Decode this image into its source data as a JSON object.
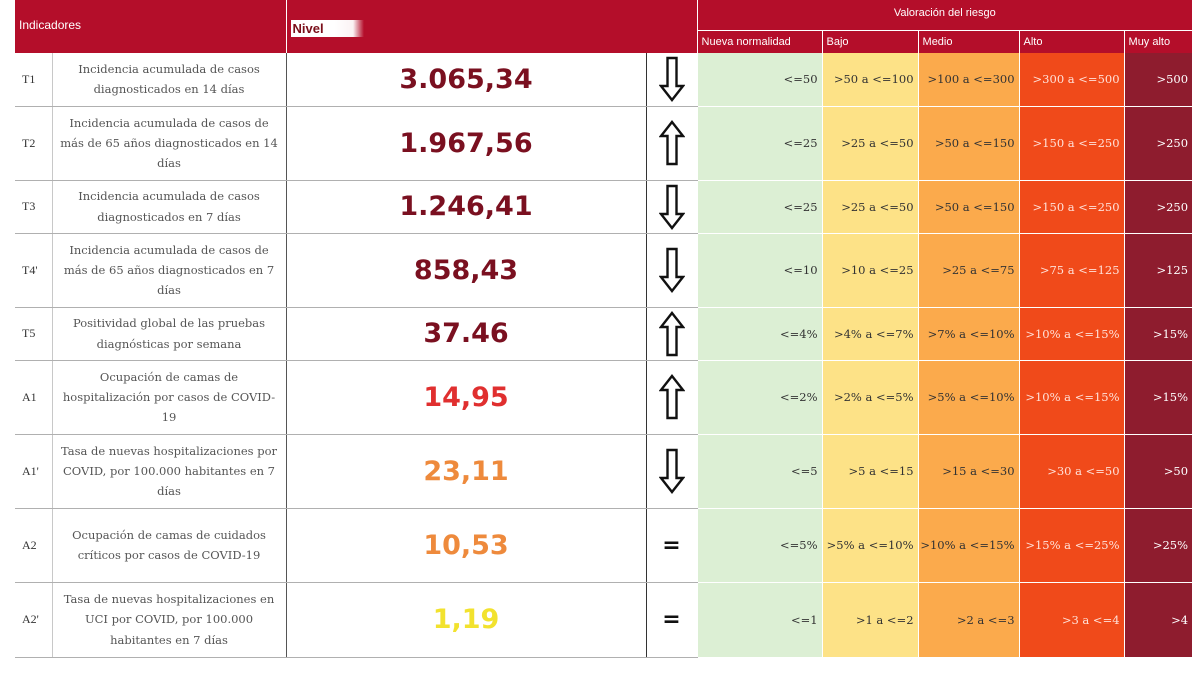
{
  "headers": {
    "indicadores": "Indicadores",
    "nivel": "Nivel",
    "valoracion": "Valoración del riesgo",
    "categories": [
      "Nueva normalidad",
      "Bajo",
      "Medio",
      "Alto",
      "Muy alto"
    ]
  },
  "colors": {
    "header_bg": "#b40e2a",
    "nueva_normalidad": "#dcefd4",
    "bajo": "#fde287",
    "medio": "#fbaa4c",
    "alto": "#f04a1a",
    "muy_alto": "#8e1c2e"
  },
  "rows": [
    {
      "code": "T1",
      "description": "Incidencia acumulada de casos diagnosticados en 14 días",
      "value": "3.065,34",
      "value_color": "#7a1020",
      "trend": "down",
      "thresholds": [
        "<=50",
        ">50 a <=100",
        ">100 a <=300",
        ">300 a <=500",
        ">500"
      ]
    },
    {
      "code": "T2",
      "description": "Incidencia acumulada de casos de más de 65 años diagnosticados en 14 días",
      "value": "1.967,56",
      "value_color": "#7a1020",
      "trend": "up",
      "thresholds": [
        "<=25",
        ">25 a <=50",
        ">50 a <=150",
        ">150 a <=250",
        ">250"
      ]
    },
    {
      "code": "T3",
      "description": "Incidencia acumulada de casos diagnosticados en 7 días",
      "value": "1.246,41",
      "value_color": "#7a1020",
      "trend": "down",
      "thresholds": [
        "<=25",
        ">25 a <=50",
        ">50 a <=150",
        ">150 a <=250",
        ">250"
      ]
    },
    {
      "code": "T4'",
      "description": "Incidencia acumulada de casos de más de 65 años diagnosticados en 7 días",
      "value": "858,43",
      "value_color": "#7a1020",
      "trend": "down",
      "thresholds": [
        "<=10",
        ">10 a <=25",
        ">25 a <=75",
        ">75 a <=125",
        ">125"
      ]
    },
    {
      "code": "T5",
      "description": "Positividad global de las pruebas diagnósticas por semana",
      "value": "37.46",
      "value_color": "#7a1020",
      "trend": "up",
      "thresholds": [
        "<=4%",
        ">4% a <=7%",
        ">7% a <=10%",
        ">10% a <=15%",
        ">15%"
      ]
    },
    {
      "code": "A1",
      "description": "Ocupación de camas de hospitalización por casos de COVID-19",
      "value": "14,95",
      "value_color": "#e02f2f",
      "trend": "up",
      "thresholds": [
        "<=2%",
        ">2% a <=5%",
        ">5% a <=10%",
        ">10% a <=15%",
        ">15%"
      ]
    },
    {
      "code": "A1'",
      "description": "Tasa de nuevas hospitalizaciones por COVID, por 100.000 habitantes en 7 días",
      "value": "23,11",
      "value_color": "#ee8a3c",
      "trend": "down",
      "thresholds": [
        "<=5",
        ">5 a <=15",
        ">15 a <=30",
        ">30 a <=50",
        ">50"
      ]
    },
    {
      "code": "A2",
      "description": "Ocupación de camas de cuidados críticos por casos de COVID-19",
      "value": "10,53",
      "value_color": "#ee8a3c",
      "trend": "equal",
      "trend_symbol": "=",
      "thresholds": [
        "<=5%",
        ">5% a <=10%",
        ">10% a <=15%",
        ">15% a <=25%",
        ">25%"
      ]
    },
    {
      "code": "A2'",
      "description": "Tasa de nuevas hospitalizaciones en UCI por COVID, por 100.000 habitantes en 7 días",
      "value": "1,19",
      "value_color": "#f2e22e",
      "trend": "equal",
      "trend_symbol": "=",
      "thresholds": [
        "<=1",
        ">1 a <=2",
        ">2 a <=3",
        ">3 a <=4",
        ">4"
      ]
    }
  ]
}
